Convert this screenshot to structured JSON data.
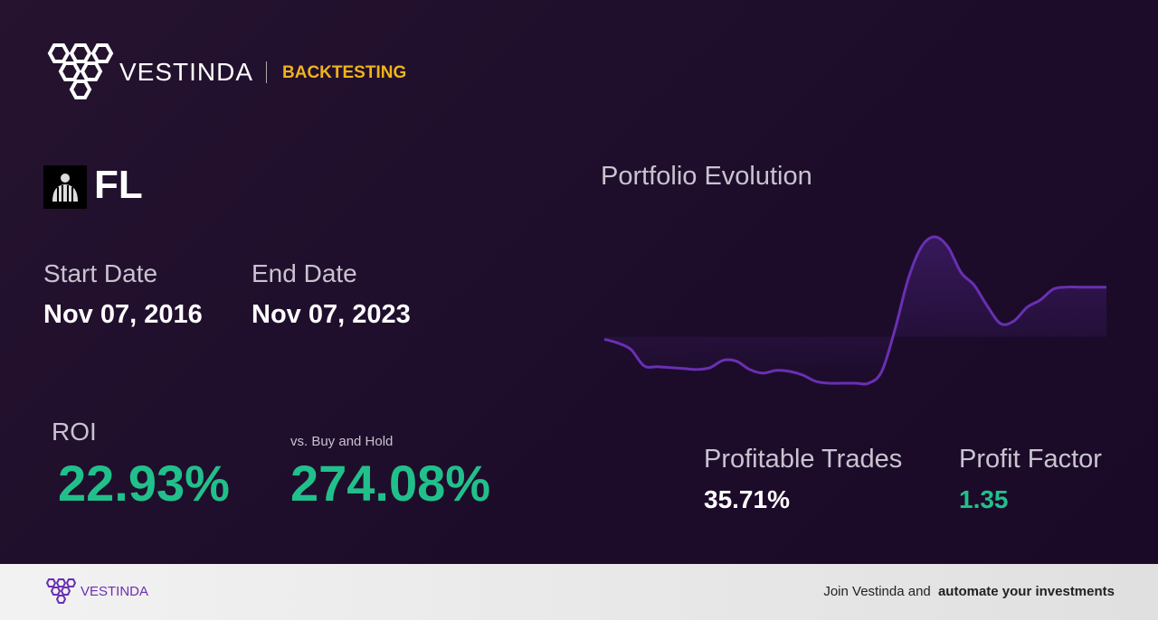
{
  "header": {
    "brand": "VESTINDA",
    "section": "BACKTESTING"
  },
  "ticker": "FL",
  "dates": {
    "start_label": "Start Date",
    "start": "Nov 07, 2016",
    "end_label": "End Date",
    "end": "Nov 07, 2023"
  },
  "roi": {
    "label": "ROI",
    "value": "22.93%",
    "compare_label": "vs. Buy and Hold",
    "compare_value": "274.08%"
  },
  "stats": {
    "trades_label": "Profitable Trades",
    "trades_value": "35.71%",
    "factor_label": "Profit Factor",
    "factor_value": "1.35"
  },
  "chart": {
    "title": "Portfolio Evolution",
    "color": "#6a2fb4",
    "values": [
      49,
      45,
      38,
      20,
      19,
      18,
      17,
      16,
      18,
      26,
      25,
      16,
      12,
      15,
      14,
      10,
      3,
      1,
      1,
      1,
      1,
      14,
      60,
      115,
      150,
      161,
      150,
      122,
      108,
      85,
      66,
      69,
      84,
      92,
      104,
      106,
      106,
      106,
      106
    ]
  },
  "footer": {
    "brand": "VESTINDA",
    "cta_prefix": "Join Vestinda and",
    "cta_bold": "automate your investments"
  }
}
